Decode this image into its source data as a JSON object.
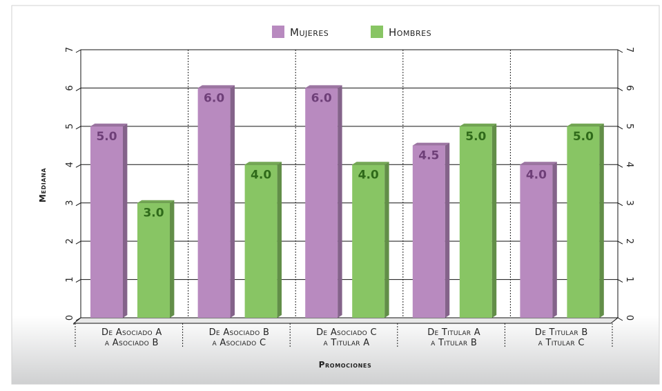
{
  "chart_data": {
    "type": "bar",
    "categories": [
      [
        "De Asociado A",
        "a Asociado B"
      ],
      [
        "De Asociado B",
        "a Asociado C"
      ],
      [
        "De Asociado C",
        "a Titular A"
      ],
      [
        "De Titular A",
        "a Titular B"
      ],
      [
        "De Titular B",
        "a Titular C"
      ]
    ],
    "series": [
      {
        "name": "Mujeres",
        "values": [
          5.0,
          6.0,
          6.0,
          4.5,
          4.0
        ],
        "color": "#b88abf",
        "label_color": "#6e3f78"
      },
      {
        "name": "Hombres",
        "values": [
          3.0,
          4.0,
          4.0,
          5.0,
          5.0
        ],
        "color": "#88c564",
        "label_color": "#2f6a1a"
      }
    ],
    "value_labels": [
      [
        "5.0",
        "6.0",
        "6.0",
        "4.5",
        "4.0"
      ],
      [
        "3.0",
        "4.0",
        "4.0",
        "5.0",
        "5.0"
      ]
    ],
    "xlabel": "Promociones",
    "ylabel": "Mediana",
    "ylim": [
      0,
      7
    ],
    "yticks": [
      "0",
      "1",
      "2",
      "3",
      "4",
      "5",
      "6",
      "7"
    ],
    "grid": true,
    "legend_position": "top-center"
  }
}
